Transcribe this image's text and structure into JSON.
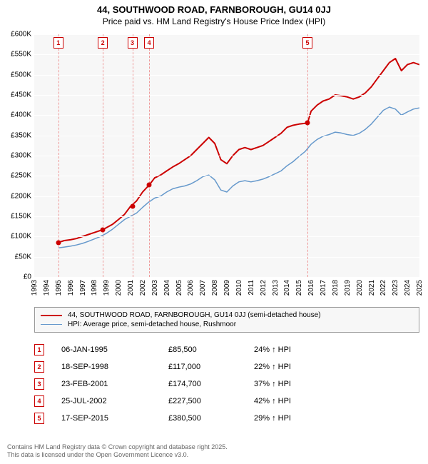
{
  "title": "44, SOUTHWOOD ROAD, FARNBOROUGH, GU14 0JJ",
  "subtitle": "Price paid vs. HM Land Registry's House Price Index (HPI)",
  "chart": {
    "type": "line",
    "background_color": "#f7f7f7",
    "grid_color": "#ffffff",
    "x_axis": {
      "min": 1993,
      "max": 2025,
      "ticks": [
        1993,
        1994,
        1995,
        1996,
        1997,
        1998,
        1999,
        2000,
        2001,
        2002,
        2003,
        2004,
        2005,
        2006,
        2007,
        2008,
        2009,
        2010,
        2011,
        2012,
        2013,
        2014,
        2015,
        2016,
        2017,
        2018,
        2019,
        2020,
        2021,
        2022,
        2023,
        2024,
        2025
      ],
      "label_fontsize": 10
    },
    "y_axis": {
      "min": 0,
      "max": 600000,
      "step": 50000,
      "tick_labels": [
        "£0",
        "£50K",
        "£100K",
        "£150K",
        "£200K",
        "£250K",
        "£300K",
        "£350K",
        "£400K",
        "£450K",
        "£500K",
        "£550K",
        "£600K"
      ],
      "label_fontsize": 10
    },
    "series": [
      {
        "name": "property",
        "color": "#cc0000",
        "width": 2,
        "label": "44, SOUTHWOOD ROAD, FARNBOROUGH, GU14 0JJ (semi-detached house)",
        "points": [
          [
            1995,
            85500
          ],
          [
            1995.5,
            90000
          ],
          [
            1996,
            92000
          ],
          [
            1996.5,
            95000
          ],
          [
            1997,
            100000
          ],
          [
            1997.5,
            105000
          ],
          [
            1998,
            110000
          ],
          [
            1998.7,
            117000
          ],
          [
            1999,
            122000
          ],
          [
            1999.5,
            130000
          ],
          [
            2000,
            142000
          ],
          [
            2000.5,
            155000
          ],
          [
            2001,
            174700
          ],
          [
            2001.5,
            188000
          ],
          [
            2002,
            210000
          ],
          [
            2002.55,
            227500
          ],
          [
            2003,
            245000
          ],
          [
            2003.5,
            252000
          ],
          [
            2004,
            262000
          ],
          [
            2004.5,
            272000
          ],
          [
            2005,
            280000
          ],
          [
            2005.5,
            290000
          ],
          [
            2006,
            300000
          ],
          [
            2006.5,
            315000
          ],
          [
            2007,
            330000
          ],
          [
            2007.5,
            345000
          ],
          [
            2008,
            330000
          ],
          [
            2008.5,
            290000
          ],
          [
            2009,
            280000
          ],
          [
            2009.5,
            300000
          ],
          [
            2010,
            315000
          ],
          [
            2010.5,
            320000
          ],
          [
            2011,
            315000
          ],
          [
            2011.5,
            320000
          ],
          [
            2012,
            325000
          ],
          [
            2012.5,
            335000
          ],
          [
            2013,
            345000
          ],
          [
            2013.5,
            355000
          ],
          [
            2014,
            370000
          ],
          [
            2014.5,
            375000
          ],
          [
            2015,
            378000
          ],
          [
            2015.7,
            380500
          ],
          [
            2016,
            410000
          ],
          [
            2016.5,
            425000
          ],
          [
            2017,
            435000
          ],
          [
            2017.5,
            440000
          ],
          [
            2018,
            450000
          ],
          [
            2018.5,
            448000
          ],
          [
            2019,
            445000
          ],
          [
            2019.5,
            440000
          ],
          [
            2020,
            445000
          ],
          [
            2020.5,
            455000
          ],
          [
            2021,
            470000
          ],
          [
            2021.5,
            490000
          ],
          [
            2022,
            510000
          ],
          [
            2022.5,
            530000
          ],
          [
            2023,
            540000
          ],
          [
            2023.5,
            510000
          ],
          [
            2024,
            525000
          ],
          [
            2024.5,
            530000
          ],
          [
            2025,
            525000
          ]
        ]
      },
      {
        "name": "hpi",
        "color": "#6699cc",
        "width": 1.5,
        "label": "HPI: Average price, semi-detached house, Rushmoor",
        "points": [
          [
            1995,
            72000
          ],
          [
            1995.5,
            74000
          ],
          [
            1996,
            76000
          ],
          [
            1996.5,
            79000
          ],
          [
            1997,
            83000
          ],
          [
            1997.5,
            88000
          ],
          [
            1998,
            94000
          ],
          [
            1998.5,
            100000
          ],
          [
            1999,
            108000
          ],
          [
            1999.5,
            118000
          ],
          [
            2000,
            130000
          ],
          [
            2000.5,
            142000
          ],
          [
            2001,
            150000
          ],
          [
            2001.5,
            158000
          ],
          [
            2002,
            172000
          ],
          [
            2002.5,
            185000
          ],
          [
            2003,
            195000
          ],
          [
            2003.5,
            200000
          ],
          [
            2004,
            210000
          ],
          [
            2004.5,
            218000
          ],
          [
            2005,
            222000
          ],
          [
            2005.5,
            225000
          ],
          [
            2006,
            230000
          ],
          [
            2006.5,
            238000
          ],
          [
            2007,
            248000
          ],
          [
            2007.5,
            252000
          ],
          [
            2008,
            240000
          ],
          [
            2008.5,
            215000
          ],
          [
            2009,
            210000
          ],
          [
            2009.5,
            225000
          ],
          [
            2010,
            235000
          ],
          [
            2010.5,
            238000
          ],
          [
            2011,
            235000
          ],
          [
            2011.5,
            238000
          ],
          [
            2012,
            242000
          ],
          [
            2012.5,
            248000
          ],
          [
            2013,
            255000
          ],
          [
            2013.5,
            262000
          ],
          [
            2014,
            275000
          ],
          [
            2014.5,
            285000
          ],
          [
            2015,
            298000
          ],
          [
            2015.5,
            310000
          ],
          [
            2016,
            328000
          ],
          [
            2016.5,
            340000
          ],
          [
            2017,
            348000
          ],
          [
            2017.5,
            352000
          ],
          [
            2018,
            358000
          ],
          [
            2018.5,
            356000
          ],
          [
            2019,
            352000
          ],
          [
            2019.5,
            350000
          ],
          [
            2020,
            355000
          ],
          [
            2020.5,
            365000
          ],
          [
            2021,
            378000
          ],
          [
            2021.5,
            395000
          ],
          [
            2022,
            412000
          ],
          [
            2022.5,
            420000
          ],
          [
            2023,
            415000
          ],
          [
            2023.5,
            400000
          ],
          [
            2024,
            408000
          ],
          [
            2024.5,
            415000
          ],
          [
            2025,
            418000
          ]
        ]
      }
    ],
    "markers": [
      {
        "n": "1",
        "year": 1995,
        "date": "06-JAN-1995",
        "price": "£85,500",
        "delta": "24% ↑ HPI",
        "y": 85500
      },
      {
        "n": "2",
        "year": 1998.7,
        "date": "18-SEP-1998",
        "price": "£117,000",
        "delta": "22% ↑ HPI",
        "y": 117000
      },
      {
        "n": "3",
        "year": 2001.15,
        "date": "23-FEB-2001",
        "price": "£174,700",
        "delta": "37% ↑ HPI",
        "y": 174700
      },
      {
        "n": "4",
        "year": 2002.55,
        "date": "25-JUL-2002",
        "price": "£227,500",
        "delta": "42% ↑ HPI",
        "y": 227500
      },
      {
        "n": "5",
        "year": 2015.7,
        "date": "17-SEP-2015",
        "price": "£380,500",
        "delta": "29% ↑ HPI",
        "y": 380500
      }
    ],
    "marker_color": "#cc0000",
    "marker_line_color": "#ee9999"
  },
  "legend": {
    "items": [
      {
        "color": "#cc0000",
        "width": 2,
        "label": "44, SOUTHWOOD ROAD, FARNBOROUGH, GU14 0JJ (semi-detached house)"
      },
      {
        "color": "#6699cc",
        "width": 1.5,
        "label": "HPI: Average price, semi-detached house, Rushmoor"
      }
    ]
  },
  "footer": {
    "line1": "Contains HM Land Registry data © Crown copyright and database right 2025.",
    "line2": "This data is licensed under the Open Government Licence v3.0."
  }
}
